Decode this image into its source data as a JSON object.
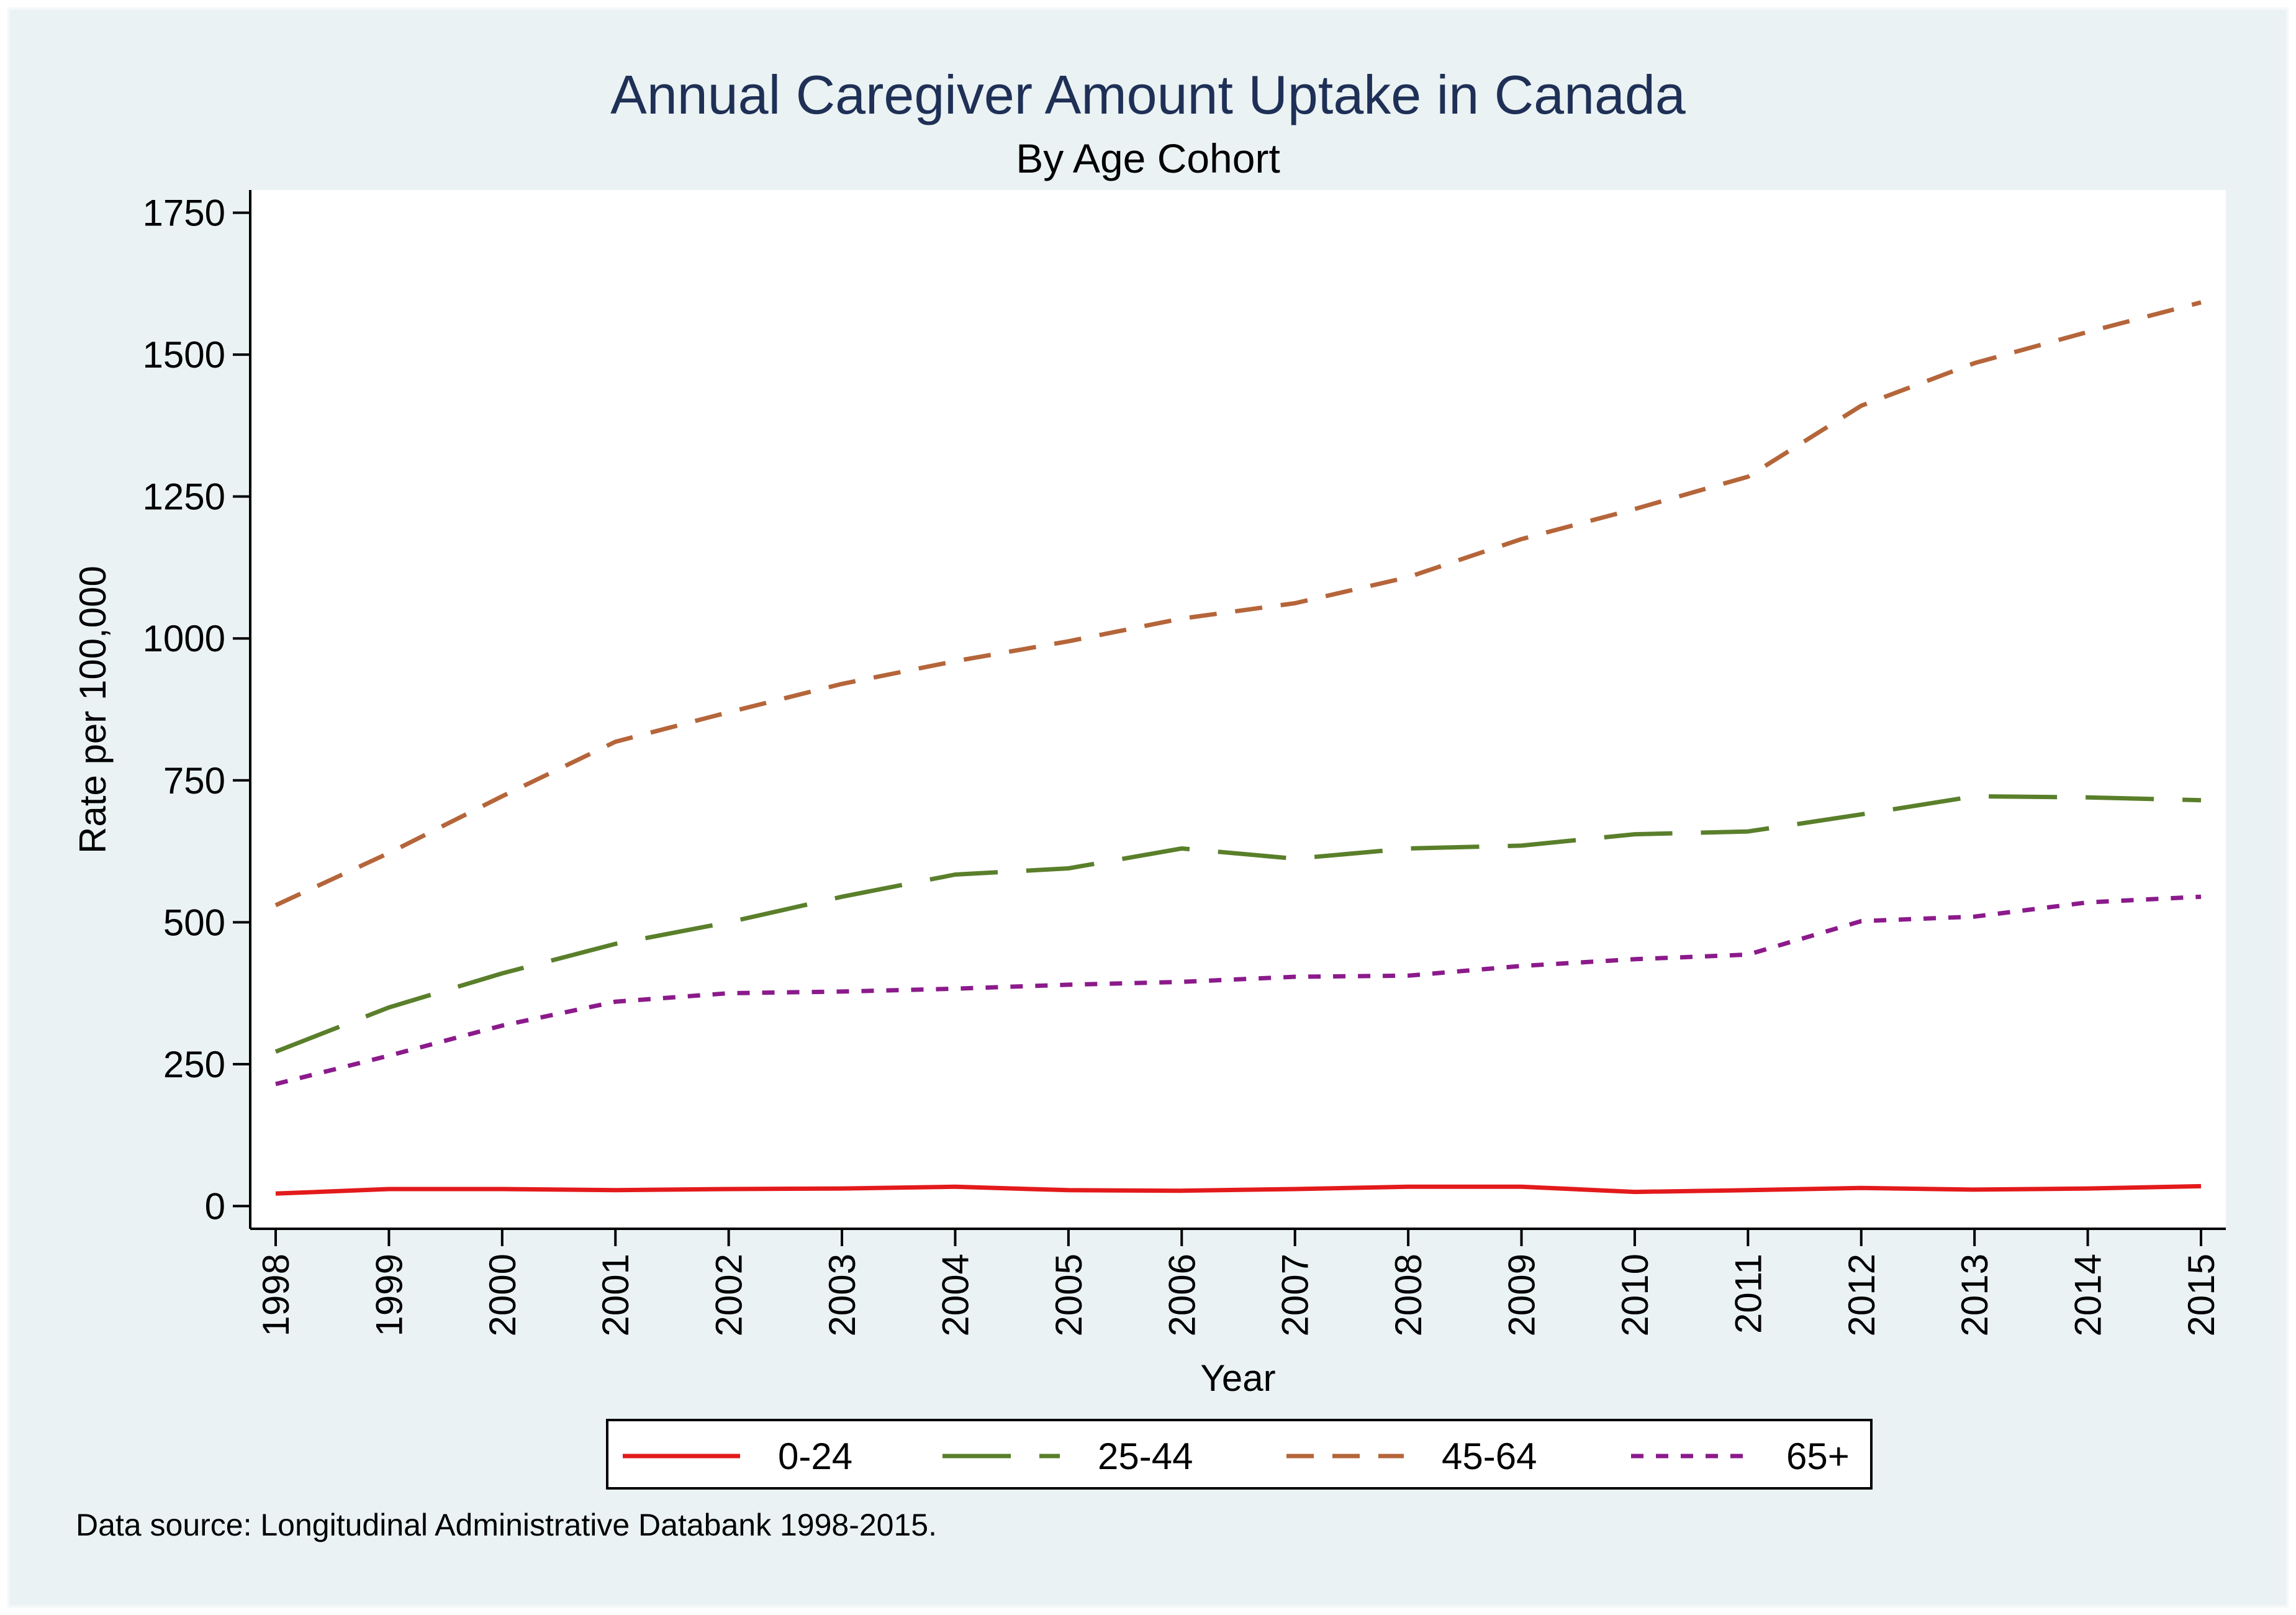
{
  "chart_data": {
    "type": "line",
    "title": "Annual Caregiver Amount Uptake in Canada",
    "subtitle": "By Age Cohort",
    "xlabel": "Year",
    "ylabel": "Rate per 100,000",
    "categories": [
      "1998",
      "1999",
      "2000",
      "2001",
      "2002",
      "2003",
      "2004",
      "2005",
      "2006",
      "2007",
      "2008",
      "2009",
      "2010",
      "2011",
      "2012",
      "2013",
      "2014",
      "2015"
    ],
    "ylim": [
      -40,
      1790
    ],
    "yticks": [
      0,
      250,
      500,
      750,
      1000,
      1250,
      1500,
      1750
    ],
    "ytick_labels": [
      "0",
      "250",
      "500",
      "750",
      "1000",
      "1250",
      "1500",
      "1750"
    ],
    "grid": false,
    "legend_position": "bottom",
    "series": [
      {
        "name": "0-24",
        "color": "#e31a1c",
        "style": "solid",
        "values": [
          22,
          30,
          30,
          28,
          30,
          31,
          34,
          28,
          27,
          30,
          34,
          34,
          25,
          28,
          32,
          29,
          31,
          35
        ]
      },
      {
        "name": "25-44",
        "color": "#5a7f2b",
        "style": "long-dash",
        "values": [
          272,
          350,
          410,
          462,
          500,
          545,
          584,
          595,
          630,
          612,
          630,
          635,
          655,
          660,
          690,
          722,
          720,
          715
        ]
      },
      {
        "name": "45-64",
        "color": "#b5653a",
        "style": "dash",
        "values": [
          530,
          622,
          722,
          818,
          870,
          920,
          960,
          995,
          1035,
          1062,
          1108,
          1175,
          1228,
          1285,
          1410,
          1485,
          1540,
          1592
        ]
      },
      {
        "name": "65+",
        "color": "#8b1a8b",
        "style": "dot",
        "values": [
          215,
          265,
          318,
          360,
          375,
          378,
          383,
          390,
          395,
          404,
          406,
          423,
          435,
          443,
          502,
          510,
          535,
          545
        ]
      }
    ]
  },
  "footer": {
    "source_note": "Data source: Longitudinal Administrative Databank 1998-2015."
  }
}
